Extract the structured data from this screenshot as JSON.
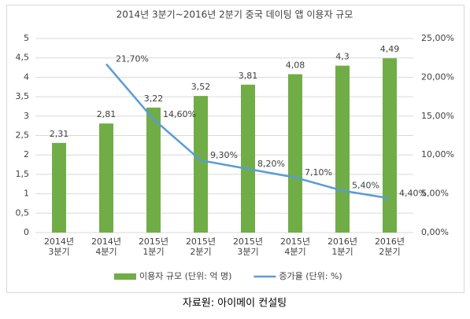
{
  "chart_data": {
    "type": "bar",
    "title": "2014년 3분기~2016년 2분기 중국 데이팅 앱 이용자 규모",
    "categories": [
      "2014년\n3분기",
      "2014년\n4분기",
      "2015년\n1분기",
      "2015년\n2분기",
      "2015년\n3분기",
      "2015년\n4분기",
      "2016년\n1분기",
      "2016년\n2분기"
    ],
    "series": [
      {
        "name": "이용자 규모 (단위: 억 명)",
        "type": "bar",
        "color": "#70ad47",
        "values": [
          2.31,
          2.81,
          3.22,
          3.52,
          3.81,
          4.08,
          4.3,
          4.49
        ],
        "value_labels": [
          "2,31",
          "2,81",
          "3,22",
          "3,52",
          "3,81",
          "4,08",
          "4,3",
          "4,49"
        ]
      },
      {
        "name": "증가율 (단위: %)",
        "type": "line",
        "color": "#5b9bd5",
        "axis": "y2",
        "values": [
          null,
          21.7,
          14.6,
          9.3,
          8.2,
          7.1,
          5.4,
          4.4
        ],
        "value_labels": [
          null,
          "21,70%",
          "14,60%",
          "9,30%",
          "8,20%",
          "7,10%",
          "5,40%",
          "4,40%"
        ]
      }
    ],
    "ylim": [
      0,
      5
    ],
    "yticks": [
      0,
      {
        "value": 0.5,
        "label": "0,5"
      },
      1,
      {
        "value": 1.5,
        "label": "1,5"
      },
      2,
      {
        "value": 2.5,
        "label": "2,5"
      },
      3,
      {
        "value": 3.5,
        "label": "3,5"
      },
      4,
      {
        "value": 4.5,
        "label": "4,5"
      },
      5
    ],
    "y2lim": [
      0,
      25
    ],
    "y2ticks": [
      {
        "value": 0,
        "label": "0,00%"
      },
      {
        "value": 5,
        "label": "5,00%"
      },
      {
        "value": 10,
        "label": "10,00%"
      },
      {
        "value": 15,
        "label": "15,00%"
      },
      {
        "value": 20,
        "label": "20,00%"
      },
      {
        "value": 25,
        "label": "25,00%"
      }
    ],
    "grid": true,
    "legend": "bottom",
    "source": "자료원: 아이메이 컨설팅"
  }
}
